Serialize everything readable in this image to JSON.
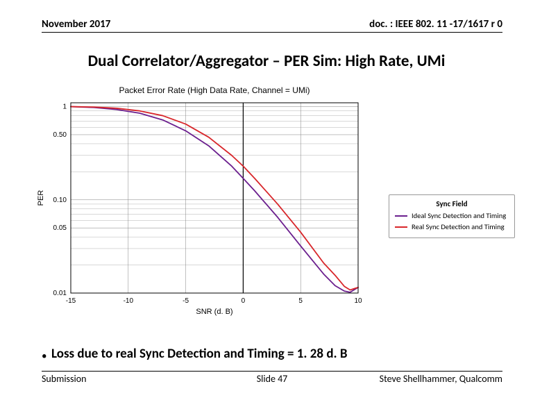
{
  "header": {
    "left": "November 2017",
    "right": "doc. : IEEE 802. 11 -17/1617 r 0"
  },
  "title": "Dual Correlator/Aggregator – PER Sim: High Rate, UMi",
  "chart": {
    "type": "line",
    "title": "Packet Error Rate (High Data Rate, Channel = UMi)",
    "title_fontsize": 12,
    "title_color": "#000000",
    "xlabel": "SNR (d. B)",
    "ylabel": "PER",
    "label_fontsize": 11,
    "background_color": "#ffffff",
    "grid_color": "#808080",
    "grid_width": 0.5,
    "border_color": "#000000",
    "xlim": [
      -15,
      10
    ],
    "ylim": [
      0.01,
      1.1
    ],
    "yscale": "log",
    "xticks": [
      -15,
      -10,
      -5,
      0,
      5,
      10
    ],
    "xtick_labels": [
      "-15",
      "-10",
      "-5",
      "0",
      "5",
      "10"
    ],
    "yticks": [
      0.01,
      0.05,
      0.1,
      0.5,
      1.0
    ],
    "ytick_labels": [
      "0.01",
      "0.05",
      "0.10",
      "0.50",
      "1"
    ],
    "tick_fontsize": 10,
    "zero_vline": true,
    "zero_vline_color": "#000000",
    "zero_vline_width": 1.2,
    "line_width": 1.8,
    "series": [
      {
        "name": "Ideal Sync Detection and Timing",
        "color": "#6b1f8e",
        "x": [
          -15,
          -13,
          -11,
          -9,
          -7,
          -5,
          -3,
          -1,
          0,
          1,
          3,
          5,
          7,
          8,
          8.8,
          9.3,
          10
        ],
        "y": [
          1.0,
          0.98,
          0.93,
          0.85,
          0.72,
          0.55,
          0.38,
          0.23,
          0.17,
          0.125,
          0.065,
          0.032,
          0.016,
          0.012,
          0.0105,
          0.0102,
          0.0115
        ]
      },
      {
        "name": "Real Sync Detection and Timing",
        "color": "#d8262a",
        "x": [
          -15,
          -13,
          -11,
          -9,
          -7,
          -5,
          -3,
          -1,
          0,
          1,
          3,
          5,
          7,
          8,
          8.8,
          9.3,
          10
        ],
        "y": [
          1.0,
          0.99,
          0.96,
          0.9,
          0.8,
          0.65,
          0.47,
          0.3,
          0.23,
          0.17,
          0.09,
          0.045,
          0.021,
          0.0155,
          0.0118,
          0.0108,
          0.0115
        ]
      }
    ]
  },
  "legend": {
    "title": "Sync Field",
    "items": [
      {
        "label": "Ideal Sync Detection and Timing",
        "color": "#6b1f8e"
      },
      {
        "label": "Real Sync Detection and Timing",
        "color": "#d8262a"
      }
    ]
  },
  "bullet": "Loss due to real Sync Detection and Timing = 1. 28 d. B",
  "footer": {
    "left": "Submission",
    "center": "Slide 47",
    "right": "Steve Shellhammer, Qualcomm"
  }
}
